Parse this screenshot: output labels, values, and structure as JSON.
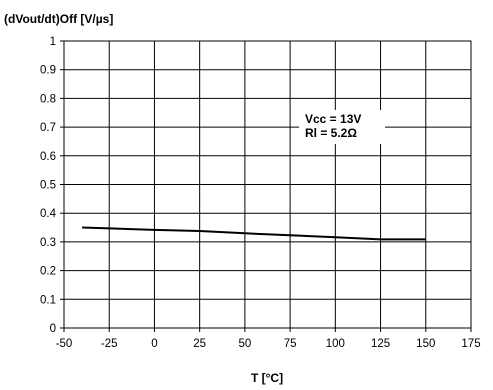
{
  "chart_data": {
    "type": "line",
    "title": "",
    "ylabel": "(dVout/dt)Off [V/µs]",
    "xlabel": "T [°C]",
    "xlim": [
      -50,
      175
    ],
    "ylim": [
      0,
      1
    ],
    "x_ticks": [
      "-50",
      "-25",
      "0",
      "25",
      "50",
      "75",
      "100",
      "125",
      "150",
      "175"
    ],
    "y_ticks": [
      "0",
      "0.1",
      "0.2",
      "0.3",
      "0.4",
      "0.5",
      "0.6",
      "0.7",
      "0.8",
      "0.9",
      "1"
    ],
    "grid": true,
    "series": [
      {
        "x": [
          -40,
          -25,
          0,
          25,
          50,
          75,
          100,
          125,
          150
        ],
        "y": [
          0.35,
          0.347,
          0.342,
          0.338,
          0.33,
          0.323,
          0.316,
          0.309,
          0.309
        ],
        "color": "#000000"
      }
    ],
    "annotations": [
      "Vcc = 13V",
      "Rl = 5.2Ω"
    ]
  }
}
